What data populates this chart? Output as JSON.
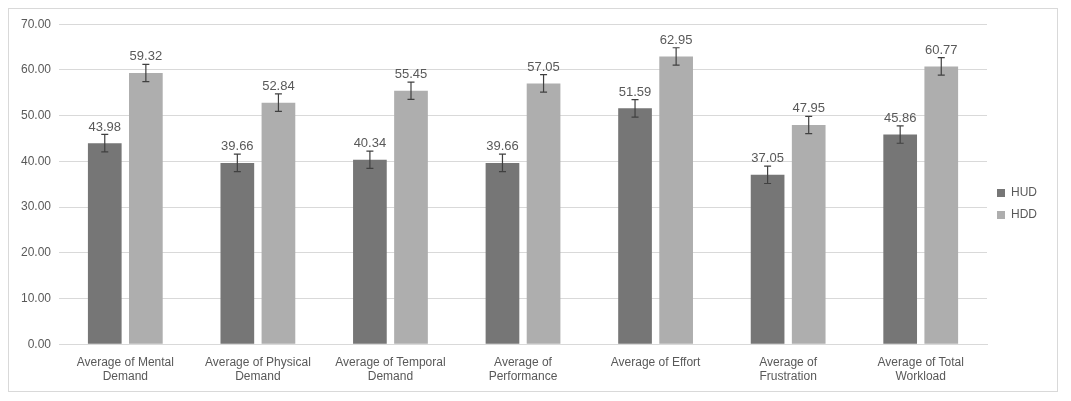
{
  "chart_data": {
    "type": "bar",
    "categories": [
      "Average of Mental Demand",
      "Average of Physical Demand",
      "Average of Temporal Demand",
      "Average of Performance",
      "Average of Effort",
      "Average of Frustration",
      "Average of Total Workload"
    ],
    "series": [
      {
        "name": "HUD",
        "color": "#767676",
        "values": [
          43.98,
          39.66,
          40.34,
          39.66,
          51.59,
          37.05,
          45.86
        ],
        "errors": [
          1.9,
          1.9,
          1.9,
          1.9,
          1.9,
          1.9,
          1.9
        ]
      },
      {
        "name": "HDD",
        "color": "#aeaeae",
        "values": [
          59.32,
          52.84,
          55.45,
          57.05,
          62.95,
          47.95,
          60.77
        ],
        "errors": [
          1.9,
          1.9,
          1.9,
          1.9,
          1.9,
          1.9,
          1.9
        ]
      }
    ],
    "ylim": [
      0,
      70
    ],
    "yticks": [
      {
        "value": 0,
        "label": "0.00"
      },
      {
        "value": 10,
        "label": "10.00"
      },
      {
        "value": 20,
        "label": "20.00"
      },
      {
        "value": 30,
        "label": "30.00"
      },
      {
        "value": 40,
        "label": "40.00"
      },
      {
        "value": 50,
        "label": "50.00"
      },
      {
        "value": 60,
        "label": "60.00"
      },
      {
        "value": 70,
        "label": "70.00"
      }
    ],
    "grid": "y",
    "legend": "right",
    "data_labels": true
  }
}
